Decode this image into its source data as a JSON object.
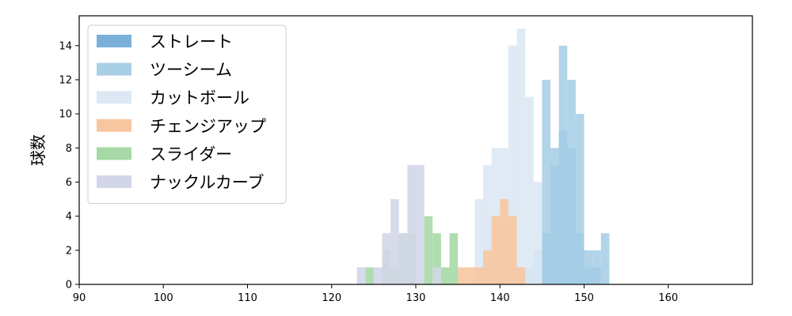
{
  "chart_data": {
    "type": "histogram",
    "xlabel": "",
    "ylabel": "球数",
    "xlim": [
      90,
      170
    ],
    "ylim": [
      0,
      15.75
    ],
    "xticks": [
      90,
      100,
      110,
      120,
      130,
      140,
      150,
      160
    ],
    "yticks": [
      0,
      2,
      4,
      6,
      8,
      10,
      12,
      14
    ],
    "bin_width": 1,
    "grid": false,
    "legend_position": "top-left",
    "series": [
      {
        "name": "ストレート",
        "color": "#7ab0d8",
        "bins": [
          {
            "x": 145,
            "count": 3
          },
          {
            "x": 146,
            "count": 7
          },
          {
            "x": 147,
            "count": 9
          },
          {
            "x": 148,
            "count": 8
          },
          {
            "x": 149,
            "count": 3
          },
          {
            "x": 150,
            "count": 1
          },
          {
            "x": 151,
            "count": 1
          }
        ]
      },
      {
        "name": "ツーシーム",
        "color": "#a9cfe7",
        "bins": [
          {
            "x": 141,
            "count": 1
          },
          {
            "x": 143,
            "count": 1
          },
          {
            "x": 144,
            "count": 2
          },
          {
            "x": 145,
            "count": 12
          },
          {
            "x": 146,
            "count": 8
          },
          {
            "x": 147,
            "count": 14
          },
          {
            "x": 148,
            "count": 12
          },
          {
            "x": 149,
            "count": 10
          },
          {
            "x": 150,
            "count": 2
          },
          {
            "x": 151,
            "count": 2
          },
          {
            "x": 152,
            "count": 3
          }
        ]
      },
      {
        "name": "カットボール",
        "color": "#dce8f4",
        "bins": [
          {
            "x": 137,
            "count": 5
          },
          {
            "x": 138,
            "count": 7
          },
          {
            "x": 139,
            "count": 8
          },
          {
            "x": 140,
            "count": 8
          },
          {
            "x": 141,
            "count": 14
          },
          {
            "x": 142,
            "count": 15
          },
          {
            "x": 143,
            "count": 11
          },
          {
            "x": 144,
            "count": 6
          }
        ]
      },
      {
        "name": "チェンジアップ",
        "color": "#f7c6a0",
        "bins": [
          {
            "x": 135,
            "count": 1
          },
          {
            "x": 136,
            "count": 1
          },
          {
            "x": 137,
            "count": 1
          },
          {
            "x": 138,
            "count": 2
          },
          {
            "x": 139,
            "count": 4
          },
          {
            "x": 140,
            "count": 5
          },
          {
            "x": 141,
            "count": 4
          },
          {
            "x": 142,
            "count": 1
          }
        ]
      },
      {
        "name": "スライダー",
        "color": "#a6d9a6",
        "bins": [
          {
            "x": 124,
            "count": 1
          },
          {
            "x": 126,
            "count": 2
          },
          {
            "x": 127,
            "count": 1
          },
          {
            "x": 128,
            "count": 3
          },
          {
            "x": 129,
            "count": 3
          },
          {
            "x": 131,
            "count": 4
          },
          {
            "x": 132,
            "count": 3
          },
          {
            "x": 133,
            "count": 1
          },
          {
            "x": 134,
            "count": 3
          }
        ]
      },
      {
        "name": "ナックルカーブ",
        "color": "#d3d6e8",
        "bins": [
          {
            "x": 123,
            "count": 1
          },
          {
            "x": 125,
            "count": 1
          },
          {
            "x": 126,
            "count": 3
          },
          {
            "x": 127,
            "count": 5
          },
          {
            "x": 128,
            "count": 3
          },
          {
            "x": 129,
            "count": 7
          },
          {
            "x": 130,
            "count": 7
          },
          {
            "x": 132,
            "count": 1
          }
        ]
      }
    ]
  }
}
